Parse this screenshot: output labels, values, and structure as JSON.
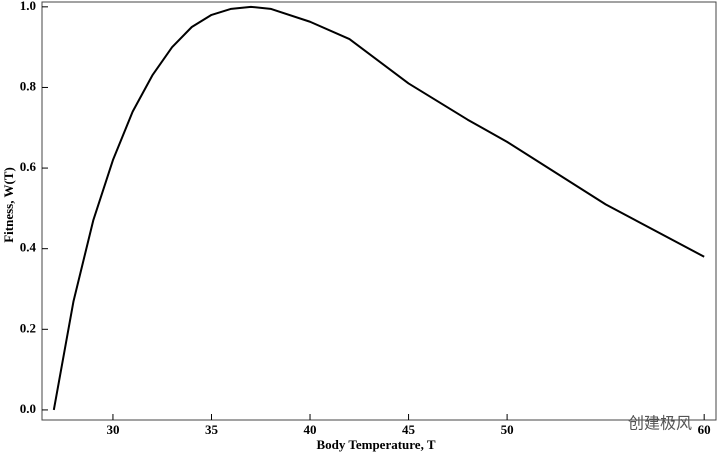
{
  "chart_data": {
    "type": "line",
    "xlabel": "Body Temperature, T",
    "ylabel": "Fitness, W(T)",
    "watermark": "创建极风",
    "x": [
      27,
      28,
      29,
      30,
      31,
      32,
      33,
      34,
      35,
      36,
      37,
      38,
      40,
      42,
      45,
      48,
      50,
      55,
      60
    ],
    "series": [
      {
        "color": "#000000",
        "values": [
          0,
          0.27,
          0.47,
          0.62,
          0.74,
          0.83,
          0.9,
          0.95,
          0.98,
          0.995,
          1.0,
          0.995,
          0.963,
          0.92,
          0.81,
          0.72,
          0.665,
          0.51,
          0.38
        ]
      }
    ],
    "xlim": [
      26.4,
      60.6
    ],
    "ylim": [
      -0.025,
      1.012
    ],
    "xticks": [
      30,
      35,
      40,
      45,
      50,
      60
    ],
    "yticks": [
      {
        "value": 0,
        "label": "0.0"
      },
      0.2,
      0.4,
      0.6,
      0.8,
      {
        "value": 1,
        "label": "1.0"
      }
    ]
  }
}
